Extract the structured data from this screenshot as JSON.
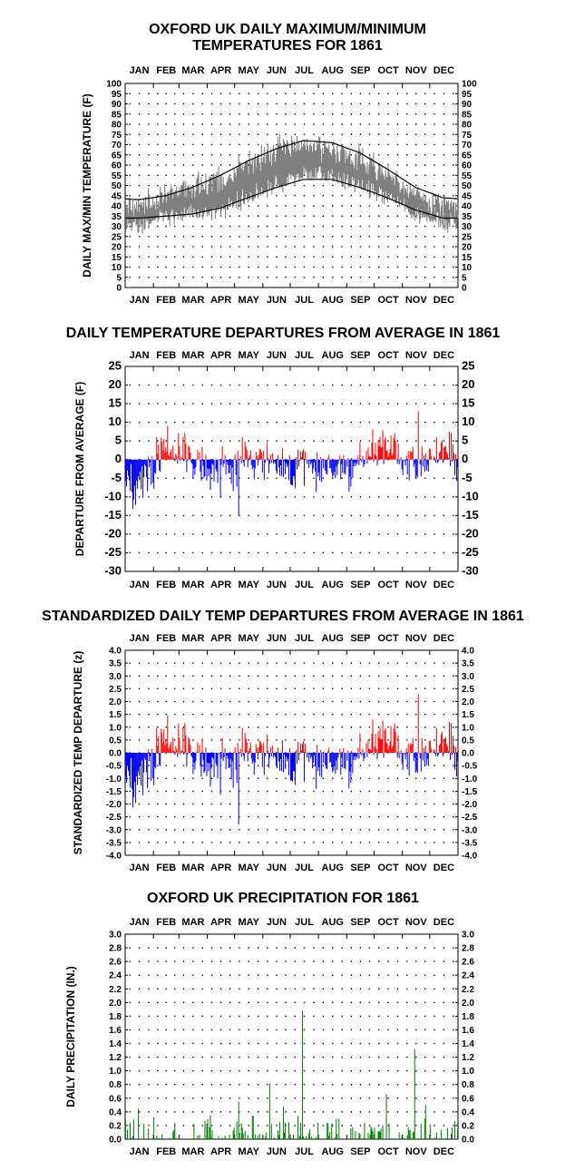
{
  "months": [
    "JAN",
    "FEB",
    "MAR",
    "APR",
    "MAY",
    "JUN",
    "JUL",
    "AUG",
    "SEP",
    "OCT",
    "NOV",
    "DEC"
  ],
  "colors": {
    "max_min_line": "#808080",
    "normal_line": "#000000",
    "positive": "#ff0000",
    "negative": "#0000ff",
    "precip": "#008000",
    "dots": "#000000"
  },
  "chart_data": [
    {
      "type": "line",
      "title": "OXFORD UK DAILY MAXIMUM/MINIMUM",
      "title_line2": "TEMPERATURES FOR 1861",
      "ylabel": "DAILY MAX/MIN TEMPERATURE (F)",
      "ylim": [
        0,
        100
      ],
      "yticks": [
        "0",
        "5",
        "10",
        "15",
        "20",
        "25",
        "30",
        "35",
        "40",
        "45",
        "50",
        "55",
        "60",
        "65",
        "70",
        "75",
        "80",
        "85",
        "90",
        "95",
        "100"
      ],
      "x": "day of year 1861 (1-365)",
      "series": [
        {
          "name": "",
          "style": "observed max (approx.)",
          "monthly_means": [
            40,
            47,
            50,
            52,
            60,
            68,
            70,
            67,
            63,
            55,
            45,
            40
          ]
        },
        {
          "name": "",
          "style": "observed min (approx.)",
          "monthly_means": [
            30,
            35,
            36,
            38,
            44,
            51,
            55,
            54,
            50,
            44,
            36,
            32
          ]
        },
        {
          "name": "",
          "style": "normal max",
          "monthly_means": [
            43,
            45,
            49,
            55,
            62,
            68,
            72,
            71,
            66,
            58,
            49,
            44
          ]
        },
        {
          "name": "",
          "style": "normal min",
          "monthly_means": [
            34,
            35,
            36,
            39,
            44,
            49,
            53,
            53,
            49,
            44,
            38,
            34
          ]
        }
      ],
      "grid": "dotted"
    },
    {
      "type": "bar",
      "title": "DAILY TEMPERATURE DEPARTURES FROM AVERAGE IN 1861",
      "ylabel": "DEPARTURE FROM AVERAGE (F)",
      "ylim": [
        -30,
        25
      ],
      "yticks": [
        "-30",
        "-25",
        "-20",
        "-15",
        "-10",
        "-5",
        "0",
        "5",
        "10",
        "15",
        "20",
        "25"
      ],
      "monthly_means": [
        -8,
        4,
        1,
        -4,
        1,
        -2,
        -2,
        -2,
        -1,
        4,
        -4,
        4
      ],
      "notable": {
        "min": -15,
        "max": 13
      },
      "grid": "dotted"
    },
    {
      "type": "bar",
      "title": "STANDARDIZED DAILY TEMP DEPARTURES FROM AVERAGE IN 1861",
      "ylabel": "STANDARDIZED TEMP DEPARTURE (z)",
      "ylim": [
        -4.0,
        4.0
      ],
      "yticks": [
        "-4.0",
        "-3.5",
        "-3.0",
        "-2.5",
        "-2.0",
        "-1.5",
        "-1.0",
        "-0.5",
        "0.0",
        "0.5",
        "1.0",
        "1.5",
        "2.0",
        "2.5",
        "3.0",
        "3.5",
        "4.0"
      ],
      "monthly_means": [
        -1.3,
        0.8,
        0.2,
        -0.6,
        0.2,
        -0.3,
        -0.4,
        -0.4,
        -0.2,
        0.9,
        -0.8,
        0.8
      ],
      "notable": {
        "min": -2.8,
        "max": 2.3
      },
      "grid": "dotted"
    },
    {
      "type": "bar",
      "title": "OXFORD UK PRECIPITATION FOR 1861",
      "ylabel": "DAILY PRECIPITATION (IN.)",
      "ylim": [
        0,
        3.0
      ],
      "yticks": [
        "0.0",
        "0.2",
        "0.4",
        "0.6",
        "0.8",
        "1.0",
        "1.2",
        "1.4",
        "1.6",
        "1.8",
        "2.0",
        "2.2",
        "2.4",
        "2.6",
        "2.8",
        "3.0"
      ],
      "notable_days": [
        {
          "day": 195,
          "value": 1.88
        },
        {
          "day": 318,
          "value": 1.32
        },
        {
          "day": 159,
          "value": 0.82
        },
        {
          "day": 287,
          "value": 0.66
        },
        {
          "day": 125,
          "value": 0.55
        },
        {
          "day": 174,
          "value": 0.48
        },
        {
          "day": 330,
          "value": 0.5
        },
        {
          "day": 15,
          "value": 0.45
        }
      ],
      "grid": "dotted"
    }
  ]
}
